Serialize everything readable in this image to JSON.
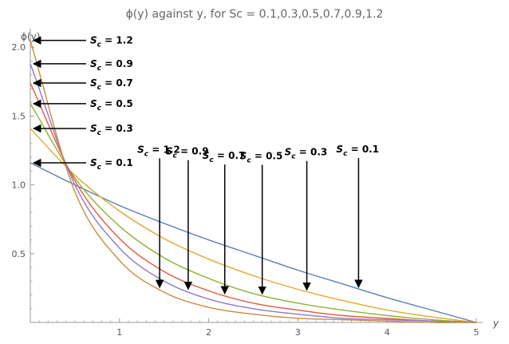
{
  "chart_data": {
    "type": "line",
    "title": "ϕ(y) against  y, for  Sc = 0.1,0.3,0.5,0.7,0.9,1.2",
    "xlabel": "y",
    "ylabel": "ϕ(y)",
    "xlim": [
      0,
      5
    ],
    "ylim": [
      0,
      2.1
    ],
    "grid": false,
    "x_ticks": [
      "1",
      "2",
      "3",
      "4",
      "5"
    ],
    "y_ticks": [
      "0.5",
      "1.0",
      "1.5",
      "2.0"
    ],
    "series": [
      {
        "name": "Sc = 0.1",
        "color": "#5a7fb8",
        "x": [
          0,
          0.5,
          1,
          1.5,
          2,
          2.5,
          3,
          3.5,
          4,
          4.5,
          5
        ],
        "y": [
          1.16,
          1.0,
          0.85,
          0.72,
          0.6,
          0.49,
          0.38,
          0.28,
          0.18,
          0.09,
          0
        ]
      },
      {
        "name": "Sc = 0.3",
        "color": "#e3a72f",
        "x": [
          0,
          0.5,
          1,
          1.5,
          2,
          2.5,
          3,
          3.5,
          4,
          4.5,
          5
        ],
        "y": [
          1.41,
          1.07,
          0.81,
          0.61,
          0.46,
          0.34,
          0.24,
          0.16,
          0.09,
          0.04,
          0
        ]
      },
      {
        "name": "Sc = 0.5",
        "color": "#8fb032",
        "x": [
          0,
          0.5,
          1,
          1.5,
          2,
          2.5,
          3,
          3.5,
          4,
          4.5,
          5
        ],
        "y": [
          1.59,
          1.05,
          0.7,
          0.47,
          0.32,
          0.21,
          0.14,
          0.09,
          0.05,
          0.02,
          0
        ]
      },
      {
        "name": "Sc = 0.7",
        "color": "#e55a3c",
        "x": [
          0,
          0.5,
          1,
          1.5,
          2,
          2.5,
          3,
          3.5,
          4,
          4.5,
          5
        ],
        "y": [
          1.74,
          1.03,
          0.61,
          0.37,
          0.23,
          0.14,
          0.09,
          0.05,
          0.03,
          0.01,
          0
        ]
      },
      {
        "name": "Sc = 0.9",
        "color": "#8f79c9",
        "x": [
          0,
          0.5,
          1,
          1.5,
          2,
          2.5,
          3,
          3.5,
          4,
          4.5,
          5
        ],
        "y": [
          1.88,
          1.0,
          0.54,
          0.3,
          0.17,
          0.1,
          0.06,
          0.03,
          0.02,
          0.01,
          0
        ]
      },
      {
        "name": "Sc = 1.2",
        "color": "#c98a3e",
        "x": [
          0,
          0.5,
          1,
          1.5,
          2,
          2.5,
          3,
          3.5,
          4,
          4.5,
          5
        ],
        "y": [
          2.05,
          0.95,
          0.45,
          0.22,
          0.11,
          0.06,
          0.03,
          0.02,
          0.01,
          0.0,
          0
        ]
      }
    ],
    "annotations_left": [
      {
        "sc": "1.2",
        "target_y": 2.05
      },
      {
        "sc": "0.9",
        "target_y": 1.88
      },
      {
        "sc": "0.7",
        "target_y": 1.74
      },
      {
        "sc": "0.5",
        "target_y": 1.59
      },
      {
        "sc": "0.3",
        "target_y": 1.41
      },
      {
        "sc": "0.1",
        "target_y": 1.16
      }
    ],
    "annotations_curve": [
      {
        "sc": "1.2",
        "target_x": 1.45
      },
      {
        "sc": "0.9",
        "target_x": 1.77
      },
      {
        "sc": "0.7",
        "target_x": 2.18
      },
      {
        "sc": "0.5",
        "target_x": 2.6
      },
      {
        "sc": "0.3",
        "target_x": 3.1
      },
      {
        "sc": "0.1",
        "target_x": 3.68
      }
    ]
  }
}
